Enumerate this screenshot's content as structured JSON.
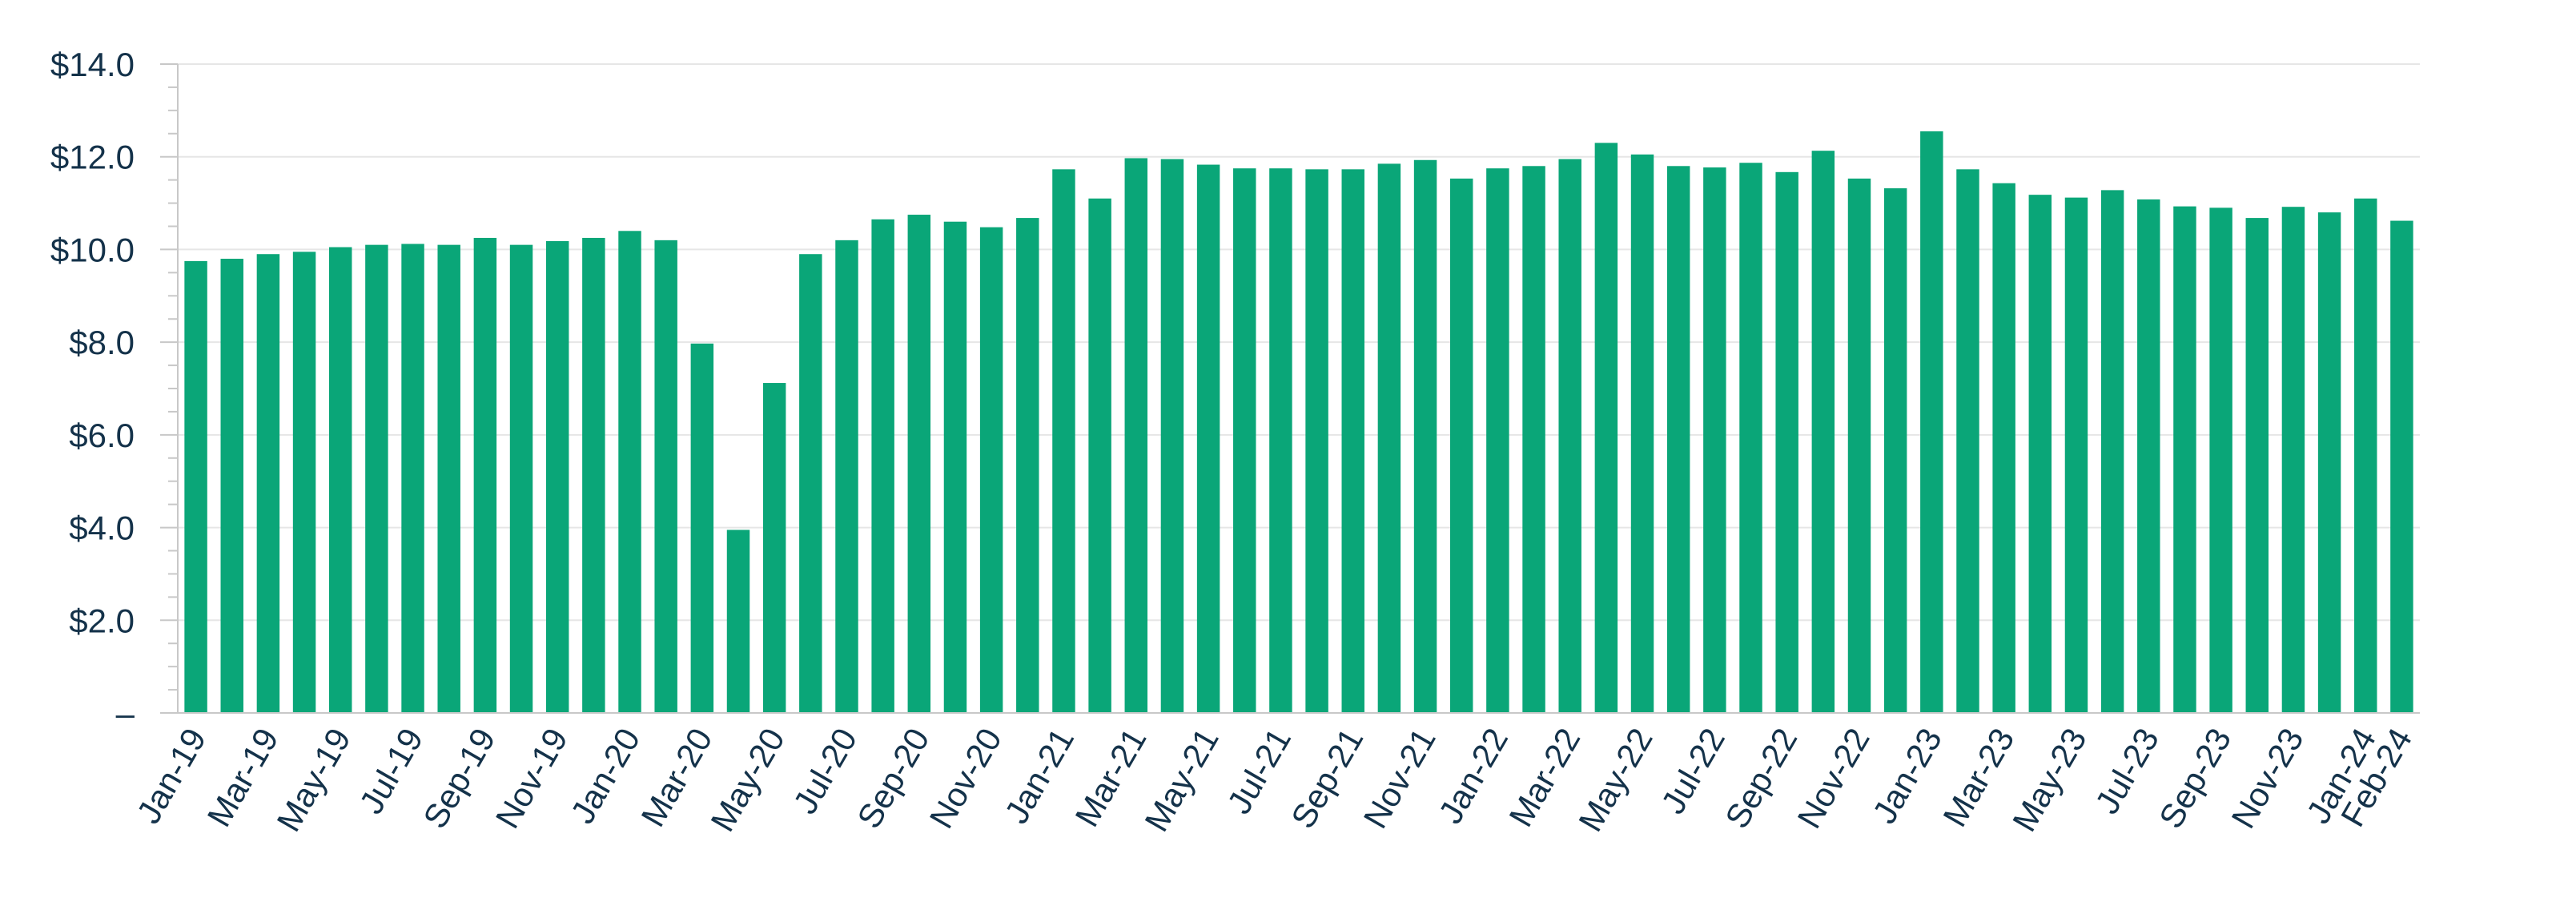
{
  "chart_data": {
    "type": "bar",
    "title": "",
    "xlabel": "",
    "ylabel": "",
    "ylim": [
      0,
      14
    ],
    "grid": true,
    "legend": "none",
    "bar_color": "#0aa678",
    "y_tick_labels": [
      "–",
      "$2.0",
      "$4.0",
      "$6.0",
      "$8.0",
      "$10.0",
      "$12.0",
      "$14.0"
    ],
    "categories": [
      "Jan-19",
      "Feb-19",
      "Mar-19",
      "Apr-19",
      "May-19",
      "Jun-19",
      "Jul-19",
      "Aug-19",
      "Sep-19",
      "Oct-19",
      "Nov-19",
      "Dec-19",
      "Jan-20",
      "Feb-20",
      "Mar-20",
      "Apr-20",
      "May-20",
      "Jun-20",
      "Jul-20",
      "Aug-20",
      "Sep-20",
      "Oct-20",
      "Nov-20",
      "Dec-20",
      "Jan-21",
      "Feb-21",
      "Mar-21",
      "Apr-21",
      "May-21",
      "Jun-21",
      "Jul-21",
      "Aug-21",
      "Sep-21",
      "Oct-21",
      "Nov-21",
      "Dec-21",
      "Jan-22",
      "Feb-22",
      "Mar-22",
      "Apr-22",
      "May-22",
      "Jun-22",
      "Jul-22",
      "Aug-22",
      "Sep-22",
      "Oct-22",
      "Nov-22",
      "Dec-22",
      "Jan-23",
      "Feb-23",
      "Mar-23",
      "Apr-23",
      "May-23",
      "Jun-23",
      "Jul-23",
      "Aug-23",
      "Sep-23",
      "Oct-23",
      "Nov-23",
      "Dec-23",
      "Jan-24",
      "Feb-24"
    ],
    "x_tick_labels": [
      "Jan-19",
      "",
      "Mar-19",
      "",
      "May-19",
      "",
      "Jul-19",
      "",
      "Sep-19",
      "",
      "Nov-19",
      "",
      "Jan-20",
      "",
      "Mar-20",
      "",
      "May-20",
      "",
      "Jul-20",
      "",
      "Sep-20",
      "",
      "Nov-20",
      "",
      "Jan-21",
      "",
      "Mar-21",
      "",
      "May-21",
      "",
      "Jul-21",
      "",
      "Sep-21",
      "",
      "Nov-21",
      "",
      "Jan-22",
      "",
      "Mar-22",
      "",
      "May-22",
      "",
      "Jul-22",
      "",
      "Sep-22",
      "",
      "Nov-22",
      "",
      "Jan-23",
      "",
      "Mar-23",
      "",
      "May-23",
      "",
      "Jul-23",
      "",
      "Sep-23",
      "",
      "Nov-23",
      "",
      "Jan-24",
      "Feb-24"
    ],
    "values": [
      9.75,
      9.8,
      9.9,
      9.95,
      10.05,
      10.1,
      10.12,
      10.1,
      10.25,
      10.1,
      10.18,
      10.25,
      10.4,
      10.2,
      7.97,
      3.95,
      7.12,
      9.9,
      10.2,
      10.65,
      10.75,
      10.6,
      10.48,
      10.68,
      11.73,
      11.1,
      11.97,
      11.95,
      11.83,
      11.75,
      11.75,
      11.73,
      11.73,
      11.85,
      11.93,
      11.53,
      11.75,
      11.8,
      11.95,
      12.3,
      12.05,
      11.8,
      11.77,
      11.87,
      11.67,
      12.13,
      11.53,
      11.32,
      12.55,
      11.73,
      11.43,
      11.18,
      11.12,
      11.28,
      11.08,
      10.93,
      10.9,
      10.68,
      10.92,
      10.8,
      11.1,
      10.62
    ]
  }
}
